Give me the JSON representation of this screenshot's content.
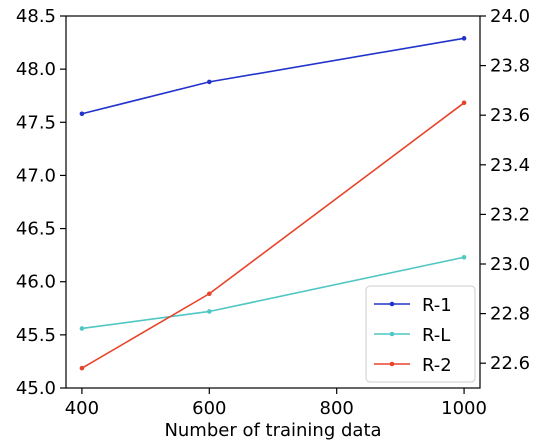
{
  "chart_data": {
    "type": "line",
    "xlabel": "Number of training data",
    "x": [
      400,
      600,
      1000
    ],
    "x_ticks": [
      400,
      600,
      800,
      1000
    ],
    "x_tick_labels": [
      "400",
      "600",
      "800",
      "1000"
    ],
    "xlim": [
      375,
      1025
    ],
    "y_left": {
      "lim": [
        45.0,
        48.5
      ],
      "ticks": [
        45.0,
        45.5,
        46.0,
        46.5,
        47.0,
        47.5,
        48.0,
        48.5
      ],
      "tick_labels": [
        "45.0",
        "45.5",
        "46.0",
        "46.5",
        "47.0",
        "47.5",
        "48.0",
        "48.5"
      ]
    },
    "y_right": {
      "lim": [
        22.5,
        24.0
      ],
      "ticks": [
        22.6,
        22.8,
        23.0,
        23.2,
        23.4,
        23.6,
        23.8,
        24.0
      ],
      "tick_labels": [
        "22.6",
        "22.8",
        "23.0",
        "23.2",
        "23.4",
        "23.6",
        "23.8",
        "24.0"
      ]
    },
    "series": [
      {
        "name": "R-1",
        "axis": "left",
        "color": "#2233cc",
        "values": [
          47.58,
          47.88,
          48.29
        ]
      },
      {
        "name": "R-L",
        "axis": "left",
        "color": "#4fc7c4",
        "values": [
          45.56,
          45.72,
          46.23
        ]
      },
      {
        "name": "R-2",
        "axis": "right",
        "color": "#e8432a",
        "values": [
          22.58,
          22.88,
          23.65
        ]
      }
    ],
    "legend_position": "bottom-right",
    "grid": false
  }
}
